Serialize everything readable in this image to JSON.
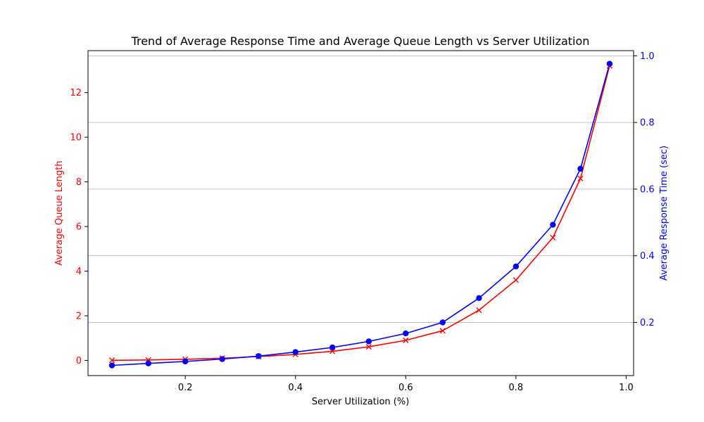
{
  "chart_data": {
    "type": "line",
    "title": "Trend of Average Response Time and Average Queue Length vs Server Utilization",
    "xlabel": "Server Utilization (%)",
    "ylabel_left": "Average Queue Length",
    "ylabel_right": "Average Response Time (sec)",
    "xlim": [
      0.0235,
      1.0135
    ],
    "ylim_left": [
      -0.68,
      13.88
    ],
    "ylim_right": [
      0.0405,
      1.0155
    ],
    "x_ticks": [
      0.2,
      0.4,
      0.6,
      0.8,
      1.0
    ],
    "x_tick_labels": [
      "0.2",
      "0.4",
      "0.6",
      "0.8",
      "1.0"
    ],
    "y_left_ticks": [
      0,
      2,
      4,
      6,
      8,
      10,
      12
    ],
    "y_left_tick_labels": [
      "0",
      "2",
      "4",
      "6",
      "8",
      "10",
      "12"
    ],
    "y_right_ticks": [
      0.2,
      0.4,
      0.6,
      0.8,
      1.0
    ],
    "y_right_tick_labels": [
      "0.2",
      "0.4",
      "0.6",
      "0.8",
      "1.0"
    ],
    "grid": "horizontal lines at right-axis ticks",
    "x": [
      0.067,
      0.133,
      0.2,
      0.267,
      0.333,
      0.4,
      0.467,
      0.533,
      0.6,
      0.667,
      0.733,
      0.8,
      0.867,
      0.917,
      0.97
    ],
    "series": [
      {
        "axis": "left",
        "color": "#ff0000",
        "marker": "x",
        "values": [
          0.005,
          0.02,
          0.05,
          0.1,
          0.17,
          0.27,
          0.41,
          0.61,
          0.9,
          1.33,
          2.25,
          3.6,
          5.5,
          8.15,
          13.2
        ]
      },
      {
        "axis": "right",
        "color": "#0000ff",
        "marker": "o",
        "values": [
          0.071,
          0.077,
          0.083,
          0.09,
          0.099,
          0.111,
          0.125,
          0.143,
          0.167,
          0.2,
          0.273,
          0.368,
          0.493,
          0.661,
          0.976
        ]
      }
    ]
  }
}
